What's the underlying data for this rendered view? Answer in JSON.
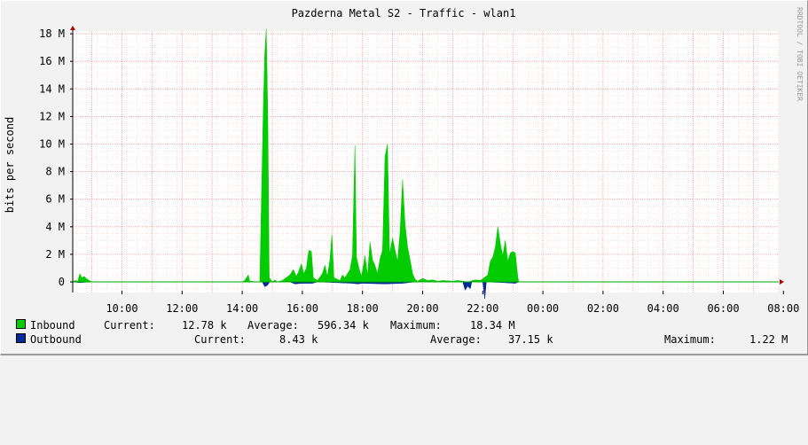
{
  "chart_data": {
    "type": "area",
    "title": "Pazderna Metal S2 - Traffic - wlan1",
    "ylabel": "bits per second",
    "watermark": "RRDTOOL / TOBI OETIKER",
    "x_ticks": [
      "10:00",
      "12:00",
      "14:00",
      "16:00",
      "18:00",
      "20:00",
      "22:00",
      "00:00",
      "02:00",
      "04:00",
      "06:00",
      "08:00"
    ],
    "y_ticks": [
      "0",
      "2 M",
      "4 M",
      "6 M",
      "8 M",
      "10 M",
      "12 M",
      "14 M",
      "16 M",
      "18 M"
    ],
    "ylim": [
      -1.2,
      18.5
    ],
    "colors": {
      "inbound": "#00cc00",
      "outbound": "#002a97",
      "grid": "#ff9e9e",
      "baseline": "#00aa00"
    },
    "series": [
      {
        "name": "Inbound",
        "color": "#00cc00",
        "points": [
          [
            "08:20",
            0
          ],
          [
            "08:27",
            0.1
          ],
          [
            "08:32",
            0.05
          ],
          [
            "08:36",
            0.6
          ],
          [
            "08:40",
            0.3
          ],
          [
            "08:45",
            0.4
          ],
          [
            "08:50",
            0.2
          ],
          [
            "08:55",
            0.1
          ],
          [
            "09:00",
            0
          ],
          [
            "14:00",
            0
          ],
          [
            "14:05",
            0.1
          ],
          [
            "14:12",
            0.5
          ],
          [
            "14:15",
            0.05
          ],
          [
            "14:35",
            0
          ],
          [
            "14:42",
            12.4
          ],
          [
            "14:45",
            16.5
          ],
          [
            "14:48",
            18.34
          ],
          [
            "14:51",
            12.3
          ],
          [
            "14:54",
            0.3
          ],
          [
            "15:00",
            0
          ],
          [
            "15:05",
            0.15
          ],
          [
            "15:10",
            0
          ],
          [
            "15:20",
            0.1
          ],
          [
            "15:35",
            0.5
          ],
          [
            "15:42",
            0.9
          ],
          [
            "15:48",
            0.4
          ],
          [
            "15:52",
            0.7
          ],
          [
            "15:58",
            1.3
          ],
          [
            "16:03",
            0.6
          ],
          [
            "16:08",
            1.0
          ],
          [
            "16:13",
            2.3
          ],
          [
            "16:18",
            2.2
          ],
          [
            "16:22",
            0.3
          ],
          [
            "16:30",
            0.1
          ],
          [
            "16:40",
            0.6
          ],
          [
            "16:45",
            1.2
          ],
          [
            "16:50",
            0.4
          ],
          [
            "16:55",
            1.6
          ],
          [
            "16:59",
            3.4
          ],
          [
            "17:03",
            0.3
          ],
          [
            "17:15",
            0.1
          ],
          [
            "17:20",
            0.5
          ],
          [
            "17:25",
            0.3
          ],
          [
            "17:35",
            0.9
          ],
          [
            "17:40",
            1.9
          ],
          [
            "17:45",
            9.9
          ],
          [
            "17:48",
            1.8
          ],
          [
            "17:53",
            1.0
          ],
          [
            "17:58",
            0.4
          ],
          [
            "18:05",
            1.9
          ],
          [
            "18:10",
            0.5
          ],
          [
            "18:15",
            2.9
          ],
          [
            "18:20",
            1.6
          ],
          [
            "18:25",
            1.2
          ],
          [
            "18:30",
            0.6
          ],
          [
            "18:35",
            1.7
          ],
          [
            "18:40",
            2.3
          ],
          [
            "18:45",
            9.1
          ],
          [
            "18:50",
            10.0
          ],
          [
            "18:54",
            2.0
          ],
          [
            "19:00",
            3.2
          ],
          [
            "19:05",
            2.3
          ],
          [
            "19:10",
            1.5
          ],
          [
            "19:15",
            3.7
          ],
          [
            "19:20",
            7.4
          ],
          [
            "19:25",
            4.2
          ],
          [
            "19:30",
            2.5
          ],
          [
            "19:35",
            1.6
          ],
          [
            "19:40",
            0.6
          ],
          [
            "19:45",
            0.2
          ],
          [
            "19:50",
            0.05
          ],
          [
            "20:00",
            0.25
          ],
          [
            "20:10",
            0.1
          ],
          [
            "20:20",
            0.15
          ],
          [
            "20:30",
            0.05
          ],
          [
            "20:40",
            0.1
          ],
          [
            "21:00",
            0.05
          ],
          [
            "21:10",
            0.1
          ],
          [
            "21:20",
            0.05
          ],
          [
            "21:30",
            0
          ],
          [
            "21:45",
            0.15
          ],
          [
            "21:55",
            0.1
          ],
          [
            "22:10",
            0.5
          ],
          [
            "22:15",
            1.5
          ],
          [
            "22:20",
            1.8
          ],
          [
            "22:25",
            2.5
          ],
          [
            "22:30",
            4.0
          ],
          [
            "22:35",
            2.8
          ],
          [
            "22:40",
            1.9
          ],
          [
            "22:45",
            3.0
          ],
          [
            "22:50",
            1.5
          ],
          [
            "22:55",
            2.1
          ],
          [
            "23:00",
            2.2
          ],
          [
            "23:05",
            2.1
          ],
          [
            "23:10",
            0.3
          ],
          [
            "23:12",
            0
          ]
        ]
      },
      {
        "name": "Outbound",
        "color": "#002a97",
        "points": [
          [
            "08:20",
            0
          ],
          [
            "08:36",
            -0.05
          ],
          [
            "09:00",
            0
          ],
          [
            "14:40",
            0
          ],
          [
            "14:45",
            -0.35
          ],
          [
            "14:50",
            -0.25
          ],
          [
            "14:55",
            0
          ],
          [
            "15:35",
            0
          ],
          [
            "15:45",
            -0.15
          ],
          [
            "16:00",
            -0.1
          ],
          [
            "16:20",
            -0.1
          ],
          [
            "16:30",
            0
          ],
          [
            "17:40",
            -0.1
          ],
          [
            "17:50",
            -0.15
          ],
          [
            "18:00",
            -0.1
          ],
          [
            "18:45",
            -0.15
          ],
          [
            "19:20",
            -0.1
          ],
          [
            "19:45",
            0
          ],
          [
            "21:20",
            0
          ],
          [
            "21:25",
            -0.6
          ],
          [
            "21:30",
            -0.3
          ],
          [
            "21:35",
            -0.5
          ],
          [
            "21:38",
            0
          ],
          [
            "22:00",
            0
          ],
          [
            "22:04",
            -1.22
          ],
          [
            "22:07",
            0
          ],
          [
            "22:40",
            -0.05
          ],
          [
            "23:05",
            -0.1
          ],
          [
            "23:12",
            0
          ]
        ]
      }
    ],
    "legend": [
      {
        "name": "Inbound",
        "current_label": "Current:",
        "current": "12.78 k",
        "average_label": "Average:",
        "average": "596.34 k",
        "maximum_label": "Maximum:",
        "maximum": "18.34 M"
      },
      {
        "name": "Outbound",
        "current_label": "Current:",
        "current": "8.43 k",
        "average_label": "Average:",
        "average": "37.15 k",
        "maximum_label": "Maximum:",
        "maximum": "1.22 M"
      }
    ]
  }
}
